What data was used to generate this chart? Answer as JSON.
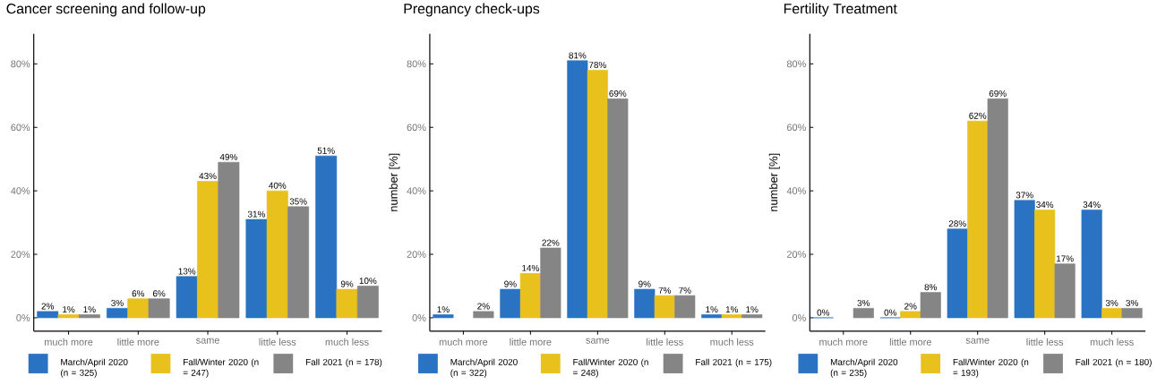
{
  "chart_data": [
    {
      "type": "bar",
      "title": "Cancer screening and follow-up",
      "categories": [
        "much more",
        "little more",
        "same",
        "little less",
        "much less"
      ],
      "ylim": [
        -4.2,
        89.5
      ],
      "yticks": [
        {
          "value": 0,
          "label": "0%"
        },
        {
          "value": 20,
          "label": "20%"
        },
        {
          "value": 40,
          "label": "40%"
        },
        {
          "value": 60,
          "label": "60%"
        },
        {
          "value": 80,
          "label": "80%"
        }
      ],
      "legend": "bottom",
      "series": [
        {
          "name": "March/April 2020 (n = 325)",
          "color": "#2a72c2",
          "values": [
            2,
            3,
            13,
            31,
            51
          ],
          "value_labels": [
            "2%",
            "3%",
            "13%",
            "31%",
            "51%"
          ]
        },
        {
          "name": "Fall/Winter 2020 (n = 247)",
          "color": "#e8c11c",
          "values": [
            1,
            6,
            43,
            40,
            9
          ],
          "value_labels": [
            "1%",
            "6%",
            "43%",
            "40%",
            "9%"
          ]
        },
        {
          "name": "Fall 2021 (n = 178)",
          "color": "#858585",
          "values": [
            1,
            6,
            49,
            35,
            10
          ],
          "value_labels": [
            "1%",
            "6%",
            "49%",
            "35%",
            "10%"
          ]
        }
      ]
    },
    {
      "type": "bar",
      "title": "Pregnancy check-ups",
      "ylabel": "number [%]",
      "categories": [
        "much more",
        "little more",
        "same",
        "little less",
        "much less"
      ],
      "ylim": [
        -4.2,
        89.5
      ],
      "yticks": [
        {
          "value": 0,
          "label": "0%"
        },
        {
          "value": 20,
          "label": "20%"
        },
        {
          "value": 40,
          "label": "40%"
        },
        {
          "value": 60,
          "label": "60%"
        },
        {
          "value": 80,
          "label": "80%"
        }
      ],
      "legend": "bottom",
      "series": [
        {
          "name": "March/April 2020 (n = 322)",
          "color": "#2a72c2",
          "values": [
            1,
            9,
            81,
            9,
            1
          ],
          "value_labels": [
            "1%",
            "9%",
            "81%",
            "9%",
            "1%"
          ]
        },
        {
          "name": "Fall/Winter 2020 (n = 248)",
          "color": "#e8c11c",
          "values": [
            null,
            14,
            78,
            7,
            1
          ],
          "value_labels": [
            null,
            "14%",
            "78%",
            "7%",
            "1%"
          ]
        },
        {
          "name": "Fall 2021 (n = 175)",
          "color": "#858585",
          "values": [
            2,
            22,
            69,
            7,
            1
          ],
          "value_labels": [
            "2%",
            "22%",
            "69%",
            "7%",
            "1%"
          ]
        }
      ]
    },
    {
      "type": "bar",
      "title": "Fertility Treatment",
      "ylabel": "number [%]",
      "categories": [
        "much more",
        "little more",
        "same",
        "little less",
        "much less"
      ],
      "ylim": [
        -4.2,
        89.5
      ],
      "yticks": [
        {
          "value": 0,
          "label": "0%"
        },
        {
          "value": 20,
          "label": "20%"
        },
        {
          "value": 40,
          "label": "40%"
        },
        {
          "value": 60,
          "label": "60%"
        },
        {
          "value": 80,
          "label": "80%"
        }
      ],
      "legend": "bottom",
      "series": [
        {
          "name": "March/April 2020 (n = 235)",
          "color": "#2a72c2",
          "values": [
            0,
            0,
            28,
            37,
            34
          ],
          "value_labels": [
            "0%",
            "0%",
            "28%",
            "37%",
            "34%"
          ]
        },
        {
          "name": "Fall/Winter 2020 (n = 193)",
          "color": "#e8c11c",
          "values": [
            null,
            2,
            62,
            34,
            3
          ],
          "value_labels": [
            null,
            "2%",
            "62%",
            "34%",
            "3%"
          ]
        },
        {
          "name": "Fall 2021 (n = 180)",
          "color": "#858585",
          "values": [
            3,
            8,
            69,
            17,
            3
          ],
          "value_labels": [
            "3%",
            "8%",
            "69%",
            "17%",
            "3%"
          ]
        }
      ]
    }
  ]
}
